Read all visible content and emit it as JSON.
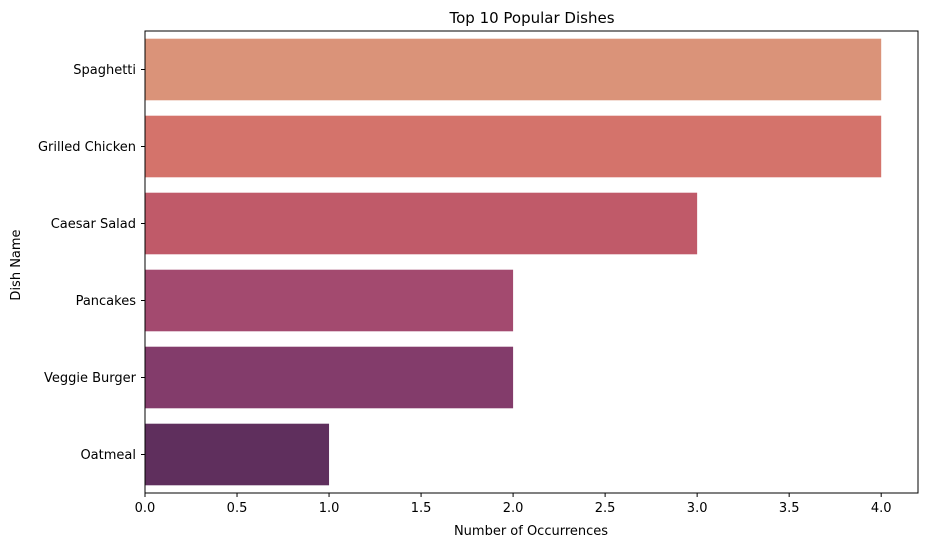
{
  "chart_data": {
    "type": "bar",
    "orientation": "horizontal",
    "title": "Top 10 Popular Dishes",
    "xlabel": "Number of Occurrences",
    "ylabel": "Dish Name",
    "xlim": [
      0,
      4.2
    ],
    "xticks": [
      0.0,
      0.5,
      1.0,
      1.5,
      2.0,
      2.5,
      3.0,
      3.5,
      4.0
    ],
    "xtick_labels": [
      "0.0",
      "0.5",
      "1.0",
      "1.5",
      "2.0",
      "2.5",
      "3.0",
      "3.5",
      "4.0"
    ],
    "grid": false,
    "legend": "none",
    "categories": [
      "Spaghetti",
      "Grilled Chicken",
      "Caesar Salad",
      "Pancakes",
      "Veggie Burger",
      "Oatmeal"
    ],
    "values": [
      4,
      4,
      3,
      2,
      2,
      1
    ],
    "colors": [
      "#da9379",
      "#d4736b",
      "#c05a69",
      "#a34a6f",
      "#833c6b",
      "#5f2f5d"
    ]
  }
}
